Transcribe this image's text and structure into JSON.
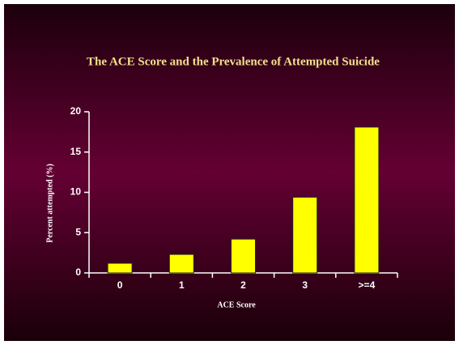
{
  "chart_data": {
    "type": "bar",
    "title": "The ACE Score and the Prevalence of Attempted Suicide",
    "x_label": "ACE Score",
    "y_label": "Percent attempted (%)",
    "categories": [
      "0",
      "1",
      "2",
      "3",
      ">=4"
    ],
    "values": [
      1.2,
      2.3,
      4.2,
      9.4,
      18.1
    ],
    "color": "#ffff00",
    "ylim": [
      0,
      20
    ],
    "yticks": [
      0,
      5,
      10,
      15,
      20
    ],
    "grid": false
  }
}
